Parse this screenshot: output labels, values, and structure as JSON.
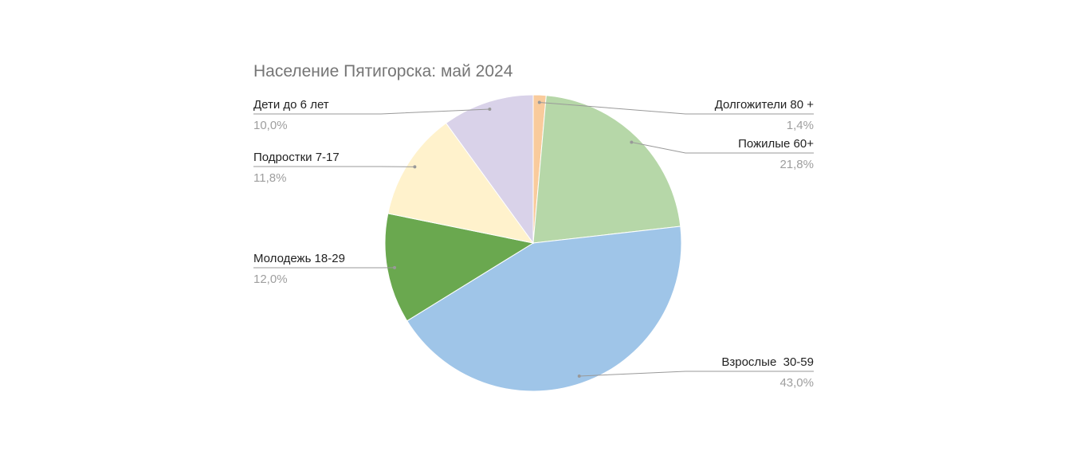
{
  "chart_data": {
    "type": "pie",
    "title": "Население Пятигорска: май 2024",
    "categories": [
      "Долгожители 80 +",
      "Пожилые 60+",
      "Взрослые  30-59",
      "Молодежь 18-29",
      "Подростки 7-17",
      "Дети до 6 лет"
    ],
    "values": [
      1.4,
      21.8,
      43.0,
      12.0,
      11.8,
      10.0
    ],
    "value_labels": [
      "1,4%",
      "21,8%",
      "43,0%",
      "12,0%",
      "11,8%",
      "10,0%"
    ],
    "colors": [
      "#f9cb9c",
      "#b6d7a8",
      "#9fc5e8",
      "#6aa84f",
      "#fff2cc",
      "#d9d2e9"
    ]
  }
}
